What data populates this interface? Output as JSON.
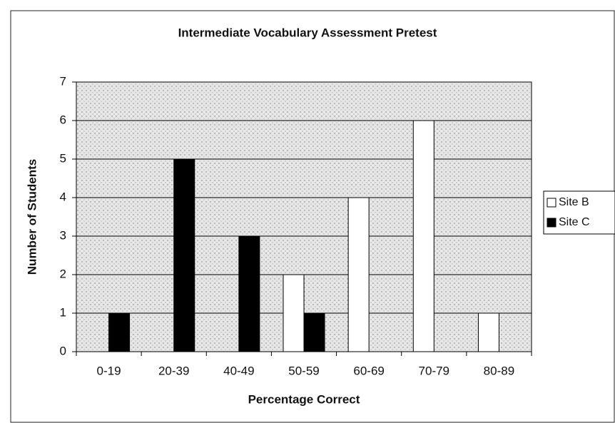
{
  "chart_data": {
    "type": "bar",
    "title": "Intermediate Vocabulary Assessment Pretest",
    "x_label": "Percentage Correct",
    "y_label": "Number of Students",
    "categories": [
      "0-19",
      "20-39",
      "40-49",
      "50-59",
      "60-69",
      "70-79",
      "80-89"
    ],
    "series": [
      {
        "name": "Site B",
        "color": "#ffffff",
        "values": [
          0,
          0,
          0,
          2,
          4,
          6,
          1
        ]
      },
      {
        "name": "Site C",
        "color": "#000000",
        "values": [
          1,
          5,
          3,
          1,
          0,
          0,
          0
        ]
      }
    ],
    "ylim": [
      0,
      7
    ],
    "yticks": [
      0,
      1,
      2,
      3,
      4,
      5,
      6,
      7
    ],
    "grid": true,
    "legend": "right"
  }
}
